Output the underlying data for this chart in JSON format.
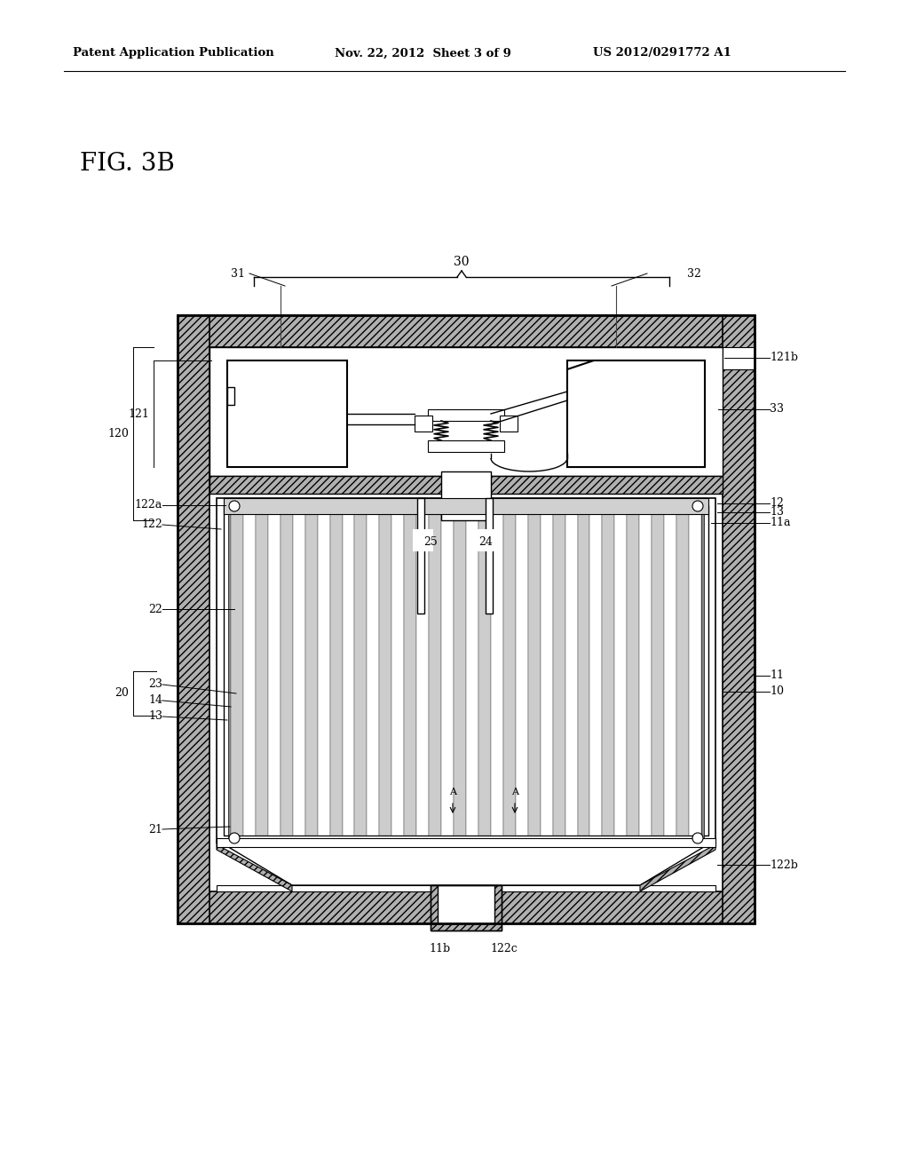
{
  "bg_color": "#ffffff",
  "header_left": "Patent Application Publication",
  "header_mid": "Nov. 22, 2012  Sheet 3 of 9",
  "header_right": "US 2012/0291772 A1",
  "fig_label": "FIG. 3B"
}
